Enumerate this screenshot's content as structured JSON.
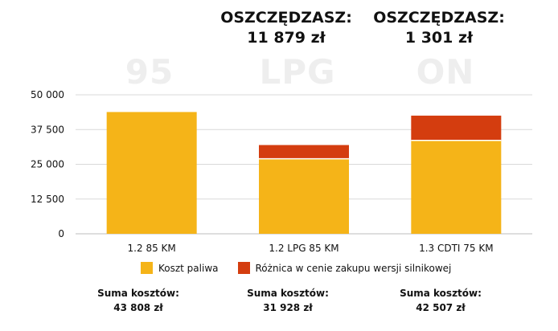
{
  "savings": [
    null,
    {
      "label": "OSZCZĘDZASZ:",
      "amount": "11 879 zł"
    },
    {
      "label": "OSZCZĘDZASZ:",
      "amount": "1 301 zł"
    }
  ],
  "fuel_labels": [
    "95",
    "LPG",
    "ON"
  ],
  "legend": [
    {
      "label": "Koszt paliwa",
      "color": "#f5b418"
    },
    {
      "label": "Różnica w cenie zakupu wersji silnikowej",
      "color": "#d43d0f"
    }
  ],
  "totals": [
    {
      "label": "Suma kosztów:",
      "value": "43 808 zł"
    },
    {
      "label": "Suma kosztów:",
      "value": "31 928 zł"
    },
    {
      "label": "Suma kosztów:",
      "value": "42 507 zł"
    }
  ],
  "chart_data": {
    "type": "bar",
    "stacked": true,
    "categories": [
      "1.2 85 KM",
      "1.2 LPG 85 KM",
      "1.3 CDTI 75 KM"
    ],
    "series": [
      {
        "name": "Koszt paliwa",
        "color": "#f5b418",
        "values": [
          43808,
          27000,
          33600
        ]
      },
      {
        "name": "Różnica w cenie zakupu wersji silnikowej",
        "color": "#d43d0f",
        "values": [
          0,
          4928,
          8907
        ]
      }
    ],
    "yticks": [
      "0",
      "12 500",
      "25 000",
      "37 500",
      "50 000"
    ],
    "ytick_values": [
      0,
      12500,
      25000,
      37500,
      50000
    ],
    "ylim": [
      0,
      50000
    ],
    "grid": true
  }
}
